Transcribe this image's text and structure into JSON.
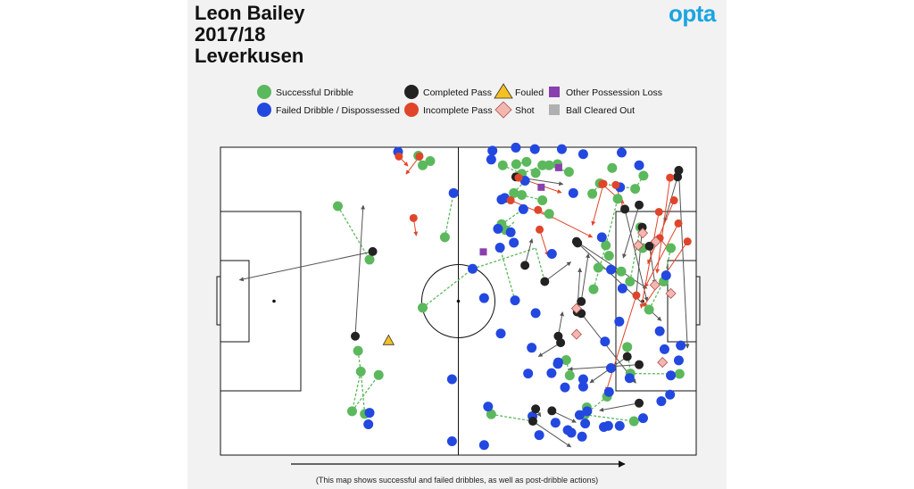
{
  "header": {
    "player": "Leon Bailey",
    "season": "2017/18",
    "team": "Leverkusen",
    "logo": "opta"
  },
  "footer_note": "(This map shows successful and failed dribbles, as well as post-dribble actions)",
  "colors": {
    "successful_dribble": "#5cb85c",
    "failed_dribble": "#2348e0",
    "completed_pass": "#222222",
    "incomplete_pass": "#e0452a",
    "fouled": "#f5c020",
    "shot": "#f2b8b0",
    "other_loss": "#8a3fae",
    "cleared": "#b0b0b0"
  },
  "chart_data": {
    "type": "scatter",
    "pitch": {
      "length": 120,
      "width": 80
    },
    "attack_direction": "left-to-right",
    "legend": {
      "placement": "top",
      "entries": [
        {
          "key": "successful_dribble",
          "label": "Successful Dribble",
          "marker": "circle",
          "color": "#5cb85c"
        },
        {
          "key": "failed_dribble",
          "label": "Failed Dribble / Dispossessed",
          "marker": "circle",
          "color": "#2348e0"
        },
        {
          "key": "completed_pass",
          "label": "Completed Pass",
          "marker": "circle",
          "color": "#222222"
        },
        {
          "key": "incomplete_pass",
          "label": "Incomplete Pass",
          "marker": "circle",
          "color": "#e0452a"
        },
        {
          "key": "fouled",
          "label": "Fouled",
          "marker": "triangle",
          "color": "#f5c020"
        },
        {
          "key": "shot",
          "label": "Shot",
          "marker": "diamond",
          "color": "#f2b8b0"
        },
        {
          "key": "other_loss",
          "label": "Other Possession Loss",
          "marker": "square",
          "color": "#8a3fae"
        },
        {
          "key": "cleared",
          "label": "Ball Cleared Out",
          "marker": "square",
          "color": "#b0b0b0"
        }
      ]
    },
    "successful_dribbles": [
      [
        29.6,
        64.7
      ],
      [
        37.6,
        50.8
      ],
      [
        34.7,
        27.1
      ],
      [
        35.4,
        21.7
      ],
      [
        36.4,
        10.7
      ],
      [
        33.2,
        11.4
      ],
      [
        39.9,
        20.8
      ],
      [
        49.9,
        77.8
      ],
      [
        51,
        75.3
      ],
      [
        52.9,
        76.4
      ],
      [
        56.6,
        56.6
      ],
      [
        51,
        38.3
      ],
      [
        71.2,
        75.3
      ],
      [
        74.6,
        75.6
      ],
      [
        76,
        73.1
      ],
      [
        79.5,
        73.3
      ],
      [
        77.2,
        76.2
      ],
      [
        81.2,
        75.3
      ],
      [
        82.9,
        75.3
      ],
      [
        85,
        75.6
      ],
      [
        87.9,
        73.6
      ],
      [
        70.9,
        60
      ],
      [
        71.9,
        58.5
      ],
      [
        74,
        68.1
      ],
      [
        76,
        67.6
      ],
      [
        81.2,
        66.2
      ],
      [
        82.9,
        62.7
      ],
      [
        93.8,
        67.9
      ],
      [
        95.7,
        70.6
      ],
      [
        98.8,
        74.6
      ],
      [
        104.6,
        69.2
      ],
      [
        106.7,
        72.6
      ],
      [
        97.2,
        54.5
      ],
      [
        95.3,
        48.7
      ],
      [
        101.1,
        47.7
      ],
      [
        106.5,
        53.8
      ],
      [
        100.2,
        66.6
      ],
      [
        103.3,
        45.1
      ],
      [
        105.9,
        59.2
      ],
      [
        111.8,
        45.1
      ],
      [
        113.6,
        53.8
      ],
      [
        108.1,
        37.8
      ],
      [
        115.8,
        21.1
      ],
      [
        102.6,
        28.1
      ],
      [
        103.4,
        21.2
      ],
      [
        97.5,
        15.2
      ],
      [
        91.9,
        10.5
      ],
      [
        104.3,
        8.8
      ],
      [
        68.3,
        10.6
      ],
      [
        92.4,
        12.4
      ],
      [
        88.1,
        20.7
      ],
      [
        87.2,
        24.7
      ],
      [
        94.1,
        43.1
      ],
      [
        98,
        51.8
      ]
    ],
    "failed_dribbles": [
      [
        44.8,
        78.8
      ],
      [
        58.8,
        68.1
      ],
      [
        63.6,
        48.4
      ],
      [
        68.3,
        76.8
      ],
      [
        68.6,
        79.1
      ],
      [
        70.9,
        66.4
      ],
      [
        74.5,
        79.9
      ],
      [
        76.8,
        71.3
      ],
      [
        79.3,
        79.5
      ],
      [
        86.1,
        79.5
      ],
      [
        91.5,
        78.2
      ],
      [
        101.2,
        78.6
      ],
      [
        105.6,
        75.3
      ],
      [
        100.8,
        69.6
      ],
      [
        89,
        68.1
      ],
      [
        71.7,
        66.8
      ],
      [
        70,
        58.8
      ],
      [
        73.2,
        57.9
      ],
      [
        76.4,
        63.9
      ],
      [
        74,
        55.2
      ],
      [
        70.5,
        53.9
      ],
      [
        74.3,
        40.2
      ],
      [
        66.5,
        40.8
      ],
      [
        83.6,
        52.3
      ],
      [
        96.2,
        56.6
      ],
      [
        98.5,
        48.2
      ],
      [
        101.4,
        43.3
      ],
      [
        112.4,
        46.7
      ],
      [
        110.8,
        32.2
      ],
      [
        100.6,
        34.7
      ],
      [
        97,
        29.5
      ],
      [
        98.5,
        22.6
      ],
      [
        103.2,
        20
      ],
      [
        91.5,
        19.7
      ],
      [
        85.1,
        23.7
      ],
      [
        78.5,
        27.9
      ],
      [
        70.7,
        31.6
      ],
      [
        79.5,
        36.9
      ],
      [
        85.2,
        24.1
      ],
      [
        86.9,
        17.6
      ],
      [
        92.5,
        11.4
      ],
      [
        96.7,
        7.3
      ],
      [
        97.8,
        7.6
      ],
      [
        100.7,
        7.6
      ],
      [
        106.6,
        9.6
      ],
      [
        98,
        16.4
      ],
      [
        115.6,
        24.6
      ],
      [
        116.1,
        28.5
      ],
      [
        112,
        27.5
      ],
      [
        91.5,
        17.8
      ],
      [
        77.6,
        21.2
      ],
      [
        83.5,
        21.3
      ],
      [
        90.6,
        10.4
      ],
      [
        84.5,
        8.4
      ],
      [
        91.2,
        4.8
      ],
      [
        87.6,
        6.5
      ],
      [
        80.4,
        5.2
      ],
      [
        66.5,
        2.6
      ],
      [
        67.5,
        12.6
      ],
      [
        78.7,
        10.1
      ],
      [
        88.5,
        5.8
      ],
      [
        92,
        8.2
      ],
      [
        111.2,
        14
      ],
      [
        113.4,
        15.7
      ],
      [
        113.6,
        20.7
      ],
      [
        37.6,
        11
      ],
      [
        37.3,
        8
      ],
      [
        58.4,
        3.6
      ],
      [
        58.4,
        19.7
      ]
    ],
    "completed_passes": [
      {
        "from": [
          38.4,
          52.9
        ],
        "to": [
          4.8,
          45.5
        ]
      },
      {
        "from": [
          34,
          30.9
        ],
        "to": [
          36,
          64.9
        ]
      },
      {
        "from": [
          76.8,
          49.3
        ],
        "to": [
          78.6,
          56.2
        ]
      },
      {
        "from": [
          90,
          37.2
        ],
        "to": [
          90.7,
          48.6
        ]
      },
      {
        "from": [
          91,
          39.9
        ],
        "to": [
          92.8,
          52.3
        ]
      },
      {
        "from": [
          85.2,
          30.9
        ],
        "to": [
          86.3,
          37.2
        ]
      },
      {
        "from": [
          81.8,
          45.1
        ],
        "to": [
          88.4,
          50.2
        ]
      },
      {
        "from": [
          91,
          36.8
        ],
        "to": [
          104.8,
          18.7
        ]
      },
      {
        "from": [
          85.8,
          29.2
        ],
        "to": [
          80.2,
          25.6
        ]
      },
      {
        "from": [
          79.5,
          12
        ],
        "to": [
          80.8,
          10
        ]
      },
      {
        "from": [
          78.8,
          8.8
        ],
        "to": [
          88.4,
          2.1
        ]
      },
      {
        "from": [
          83.6,
          11.5
        ],
        "to": [
          89.7,
          8.5
        ]
      },
      {
        "from": [
          105.6,
          13.5
        ],
        "to": [
          95.6,
          11.6
        ]
      },
      {
        "from": [
          105.6,
          23.5
        ],
        "to": [
          87.8,
          22.3
        ]
      },
      {
        "from": [
          102.6,
          25.6
        ],
        "to": [
          93.2,
          18.8
        ]
      },
      {
        "from": [
          105.6,
          65
        ],
        "to": [
          101.6,
          51.2
        ]
      },
      {
        "from": [
          102,
          63.9
        ],
        "to": [
          107.6,
          40
        ]
      },
      {
        "from": [
          115.3,
          72.3
        ],
        "to": [
          112,
          60.6
        ]
      },
      {
        "from": [
          115.6,
          74
        ],
        "to": [
          117.8,
          27.8
        ]
      },
      {
        "from": [
          108.2,
          54.3
        ],
        "to": [
          109.6,
          44.5
        ]
      },
      {
        "from": [
          106.4,
          59.2
        ],
        "to": [
          104.8,
          40.4
        ]
      },
      {
        "from": [
          74.5,
          72.3
        ],
        "to": [
          86.4,
          70.4
        ]
      },
      {
        "from": [
          89.8,
          55.5
        ],
        "to": [
          107.6,
          43.3
        ]
      },
      {
        "from": [
          90.1,
          55.1
        ],
        "to": [
          111.2,
          34.9
        ]
      }
    ],
    "incomplete_passes": [
      {
        "from": [
          45,
          77.6
        ],
        "to": [
          47.3,
          75.1
        ]
      },
      {
        "from": [
          50.2,
          77.6
        ],
        "to": [
          46.8,
          73
        ]
      },
      {
        "from": [
          48.7,
          61.6
        ],
        "to": [
          49.4,
          57
        ]
      },
      {
        "from": [
          75.2,
          72.1
        ],
        "to": [
          86,
          68.2
        ]
      },
      {
        "from": [
          80.1,
          63.7
        ],
        "to": [
          93.8,
          56.6
        ]
      },
      {
        "from": [
          80.5,
          58.6
        ],
        "to": [
          82.6,
          51.8
        ]
      },
      {
        "from": [
          73.2,
          66.2
        ],
        "to": [
          83.8,
          61.6
        ]
      },
      {
        "from": [
          96.3,
          70.4
        ],
        "to": [
          101.8,
          65.4
        ]
      },
      {
        "from": [
          99.7,
          70.2
        ],
        "to": [
          101.7,
          63.9
        ]
      },
      {
        "from": [
          96.6,
          70.5
        ],
        "to": [
          93.8,
          59.7
        ]
      },
      {
        "from": [
          110.6,
          63.2
        ],
        "to": [
          106.1,
          38.2
        ]
      },
      {
        "from": [
          113.4,
          72.1
        ],
        "to": [
          110.1,
          47.3
        ]
      },
      {
        "from": [
          114.4,
          66.2
        ],
        "to": [
          107.8,
          49.7
        ]
      },
      {
        "from": [
          115.5,
          60.2
        ],
        "to": [
          107.1,
          43.6
        ]
      },
      {
        "from": [
          110.8,
          56.4
        ],
        "to": [
          113.7,
          52.7
        ]
      },
      {
        "from": [
          117.8,
          55.5
        ],
        "to": [
          106.7,
          38.6
        ]
      },
      {
        "from": [
          104.9,
          41.5
        ],
        "to": [
          97.3,
          16.6
        ]
      }
    ],
    "fouled": [
      [
        42.4,
        29.8
      ]
    ],
    "shots": [
      [
        105.4,
        54.5
      ],
      [
        106.5,
        57.7
      ],
      [
        109.8,
        55.5
      ],
      [
        109.6,
        44.2
      ],
      [
        113.6,
        42
      ],
      [
        89.8,
        38.1
      ],
      [
        89.8,
        31.4
      ],
      [
        111.5,
        24.1
      ]
    ],
    "other_possession_loss": [
      [
        85.3,
        74.7
      ],
      [
        80.9,
        69.6
      ],
      [
        66.3,
        52.8
      ]
    ],
    "ball_cleared_out": [],
    "dribble_links": [
      [
        [
          29.6,
          64.7
        ],
        [
          37.6,
          50.8
        ]
      ],
      [
        [
          34.7,
          27.1
        ],
        [
          35.4,
          21.7
        ]
      ],
      [
        [
          35.4,
          21.7
        ],
        [
          33.2,
          11.4
        ]
      ],
      [
        [
          33.2,
          11.4
        ],
        [
          39.9,
          20.8
        ]
      ],
      [
        [
          36.4,
          10.7
        ],
        [
          35.4,
          21.7
        ]
      ],
      [
        [
          49.9,
          77.8
        ],
        [
          51,
          75.3
        ]
      ],
      [
        [
          52.9,
          76.4
        ],
        [
          51,
          75.3
        ]
      ],
      [
        [
          56.6,
          56.6
        ],
        [
          58.8,
          68.1
        ]
      ],
      [
        [
          51,
          38.3
        ],
        [
          63.6,
          48.4
        ]
      ],
      [
        [
          63.6,
          48.4
        ],
        [
          79.5,
          53.8
        ]
      ],
      [
        [
          71.2,
          75.3
        ],
        [
          76,
          73.1
        ]
      ],
      [
        [
          76,
          73.1
        ],
        [
          81.2,
          75.3
        ]
      ],
      [
        [
          82.9,
          75.3
        ],
        [
          88.4,
          73.3
        ]
      ],
      [
        [
          70.9,
          60
        ],
        [
          76.4,
          63.9
        ]
      ],
      [
        [
          71.9,
          58.5
        ],
        [
          74.2,
          60.7
        ]
      ],
      [
        [
          74,
          68.1
        ],
        [
          76.8,
          71.3
        ]
      ],
      [
        [
          76,
          67.6
        ],
        [
          81.2,
          66.2
        ]
      ],
      [
        [
          93.8,
          67.9
        ],
        [
          95.7,
          70.6
        ]
      ],
      [
        [
          95.7,
          70.6
        ],
        [
          104.6,
          69.2
        ]
      ],
      [
        [
          104.6,
          69.2
        ],
        [
          106.7,
          72.6
        ]
      ],
      [
        [
          97.2,
          54.5
        ],
        [
          100.2,
          66.6
        ]
      ],
      [
        [
          95.3,
          48.7
        ],
        [
          101.1,
          47.7
        ]
      ],
      [
        [
          103.3,
          45.1
        ],
        [
          105.9,
          59.2
        ]
      ],
      [
        [
          111.8,
          45.1
        ],
        [
          113.6,
          53.8
        ]
      ],
      [
        [
          108.1,
          37.8
        ],
        [
          111.8,
          45.1
        ]
      ],
      [
        [
          103.3,
          21.2
        ],
        [
          115.8,
          21.1
        ]
      ],
      [
        [
          97.5,
          15.2
        ],
        [
          91.9,
          10.5
        ]
      ],
      [
        [
          102.6,
          28.1
        ],
        [
          103.4,
          21.2
        ]
      ],
      [
        [
          91.9,
          10.5
        ],
        [
          104.3,
          8.8
        ]
      ],
      [
        [
          68.3,
          10.6
        ],
        [
          78.8,
          8.8
        ]
      ],
      [
        [
          88.1,
          20.7
        ],
        [
          87.2,
          24.7
        ]
      ],
      [
        [
          94.1,
          43.1
        ],
        [
          97.2,
          54.5
        ]
      ],
      [
        [
          90.6,
          10.4
        ],
        [
          92.4,
          12.4
        ]
      ],
      [
        [
          74.3,
          40.2
        ],
        [
          70.5,
          53.9
        ]
      ],
      [
        [
          79.5,
          53.8
        ],
        [
          81.8,
          45.1
        ]
      ],
      [
        [
          74.6,
          75.6
        ],
        [
          77.2,
          76.2
        ]
      ]
    ]
  }
}
